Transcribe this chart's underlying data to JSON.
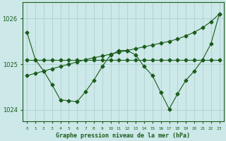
{
  "xlabel": "Graphe pression niveau de la mer (hPa)",
  "x": [
    0,
    1,
    2,
    3,
    4,
    5,
    6,
    7,
    8,
    9,
    10,
    11,
    12,
    13,
    14,
    15,
    16,
    17,
    18,
    19,
    20,
    21,
    22,
    23
  ],
  "line_flat": [
    1025.1,
    1025.1,
    1025.1,
    1025.1,
    1025.1,
    1025.1,
    1025.1,
    1025.1,
    1025.1,
    1025.1,
    1025.1,
    1025.1,
    1025.1,
    1025.1,
    1025.1,
    1025.1,
    1025.1,
    1025.1,
    1025.1,
    1025.1,
    1025.1,
    1025.1,
    1025.1,
    1025.1
  ],
  "line_diagonal": [
    1024.75,
    1024.8,
    1024.85,
    1024.9,
    1024.95,
    1025.0,
    1025.05,
    1025.1,
    1025.14,
    1025.18,
    1025.22,
    1025.26,
    1025.3,
    1025.34,
    1025.38,
    1025.42,
    1025.46,
    1025.5,
    1025.55,
    1025.62,
    1025.7,
    1025.8,
    1025.93,
    1026.1
  ],
  "line_curved_x": [
    0,
    1,
    2,
    3,
    4,
    5,
    6,
    7,
    8,
    9,
    10,
    11,
    12,
    13,
    14,
    15,
    16,
    17,
    18,
    19,
    20,
    21,
    22,
    23
  ],
  "line_curved": [
    1025.7,
    1025.1,
    1024.85,
    1024.55,
    1024.22,
    1024.2,
    1024.18,
    1024.4,
    1024.65,
    1024.95,
    1025.2,
    1025.3,
    1025.3,
    1025.2,
    1024.95,
    1024.75,
    1024.38,
    1024.02,
    1024.35,
    1024.65,
    1024.85,
    1025.1,
    1025.45,
    1026.1
  ],
  "background_color": "#cce8e8",
  "line_color": "#1a5c1a",
  "grid_color": "#aacccc",
  "text_color": "#1a5c1a",
  "ylim": [
    1023.75,
    1026.35
  ],
  "yticks": [
    1024,
    1025,
    1026
  ],
  "figsize": [
    3.2,
    2.0
  ],
  "dpi": 100
}
